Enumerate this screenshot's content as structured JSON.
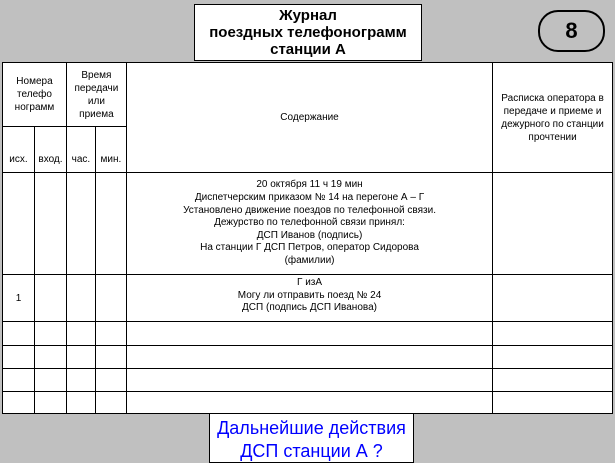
{
  "title": [
    "Журнал",
    "поездных телефонограмм",
    "станции А"
  ],
  "badge": "8",
  "table": {
    "headers": {
      "numbers": "Номера телефо нограмм",
      "time": "Время передачи или приема",
      "content": "Содержание",
      "receipt": "Расписка оператора в передаче и приеме и дежурного по станции прочтении",
      "out": "исх.",
      "in": "вход.",
      "hour": "час.",
      "min": "мин."
    },
    "rows": [
      {
        "out": "",
        "content": [
          "20 октября 11 ч 19 мин",
          "Диспетчерским приказом № 14 на перегоне А – Г",
          "Установлено движение поездов по телефонной связи.",
          "Дежурство по телефонной связи принял:",
          "ДСП Иванов (подпись)",
          "На станции Г ДСП Петров, оператор Сидорова",
          "(фамилии)"
        ]
      },
      {
        "out": "1",
        "content": [
          "Г изА",
          "Могу ли отправить поезд № 24",
          "ДСП (подпись ДСП Иванова)"
        ]
      }
    ]
  },
  "question": [
    "Дальнейшие действия",
    "ДСП станции А ?"
  ],
  "colors": {
    "background": "#c0c0c0",
    "question_text": "#0000ff"
  }
}
